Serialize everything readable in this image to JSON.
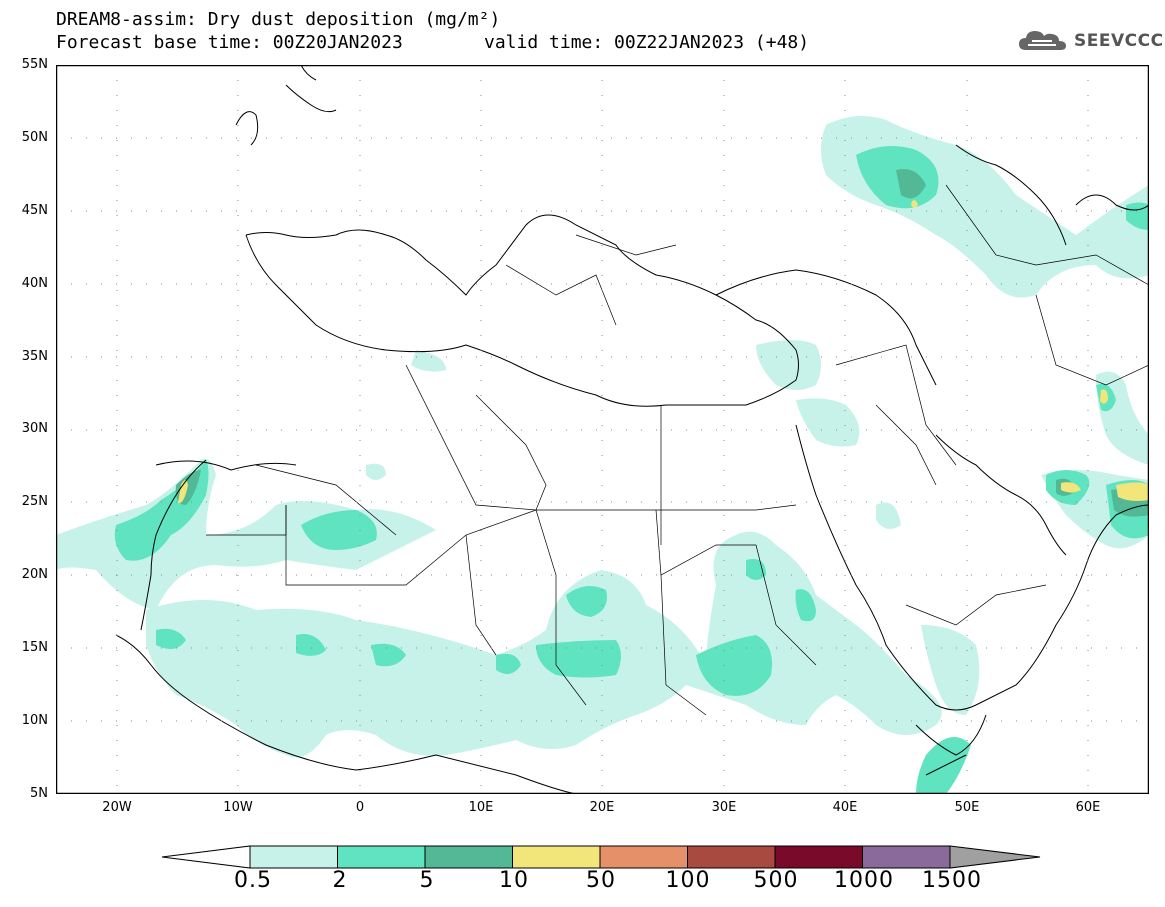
{
  "title": {
    "line1": "DREAM8-assim: Dry dust deposition (mg/m²)",
    "line2": "Forecast base time: 00Z20JAN2023",
    "valid": "valid time: 00Z22JAN2023 (+48)"
  },
  "logo": {
    "text": "SEEVCCC",
    "icon": "cloud-icon"
  },
  "map": {
    "lat_range": [
      5,
      55
    ],
    "lon_range": [
      -25,
      65
    ],
    "lat_labels": [
      "55N",
      "50N",
      "45N",
      "40N",
      "35N",
      "30N",
      "25N",
      "20N",
      "15N",
      "10N",
      "5N"
    ],
    "lon_labels": [
      "20W",
      "10W",
      "0",
      "10E",
      "20E",
      "30E",
      "40E",
      "50E",
      "60E"
    ],
    "grid": "dotted"
  },
  "legend": {
    "labels": [
      "0.5",
      "2",
      "5",
      "10",
      "50",
      "100",
      "500",
      "1000",
      "1500"
    ],
    "colors": [
      "#ffffff",
      "#c6f2ea",
      "#5fe3c0",
      "#52b896",
      "#f2e67a",
      "#e6906a",
      "#a84a40",
      "#7a0a2a",
      "#8a6a9a",
      "#a0a0a0"
    ]
  }
}
